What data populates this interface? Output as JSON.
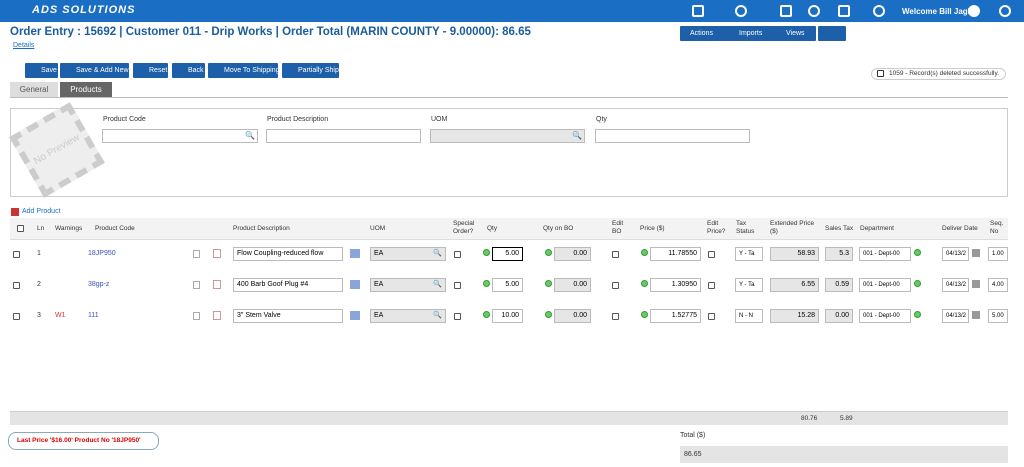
{
  "topbar": {
    "logo": "ADS SOLUTIONS",
    "welcome": "Welcome Bill Jagla"
  },
  "header": {
    "title": "Order Entry : 15692 | Customer 011 - Drip Works | Order Total (MARIN COUNTY - 9.00000): 86.65",
    "details": "Details"
  },
  "menus": [
    "Actions",
    "Imports",
    "Views"
  ],
  "toolbar": [
    "Save",
    "Save & Add New",
    "Reset",
    "Back",
    "Move To Shipping",
    "Partially Ship"
  ],
  "notification": "1059 - Record(s) deleted successfully.",
  "tabs": [
    "General",
    "Products"
  ],
  "product_panel": {
    "preview": "No Preview",
    "fields": [
      "Product Code",
      "Product Description",
      "UOM",
      "Qty"
    ]
  },
  "add_product": "Add Product",
  "table": {
    "columns": [
      "Ln",
      "Warnings",
      "Product Code",
      "Product Description",
      "UOM",
      "Special Order?",
      "Qty",
      "Qty on BO",
      "Edit BO",
      "Price ($)",
      "Edit Price?",
      "Tax Status",
      "Extended Price ($)",
      "Sales Tax",
      "Department",
      "Deliver Date",
      "Seq. No"
    ],
    "rows": [
      {
        "ln": "1",
        "code": "18JP950",
        "description": "Flow Coupling-reduced flow",
        "uom": "EA",
        "qty": "5.00",
        "qty_bo": "0.00",
        "price": "11.78550",
        "tax": "Y - Ta",
        "extended": "58.93",
        "sales_tax": "5.3",
        "department": "001 - Dept-00",
        "date": "04/13/2",
        "seq": "1.00"
      },
      {
        "ln": "2",
        "code": "38gp-z",
        "description": "400 Barb Goof Plug #4",
        "uom": "EA",
        "qty": "5.00",
        "qty_bo": "0.00",
        "price": "1.30950",
        "tax": "Y - Ta",
        "extended": "6.55",
        "sales_tax": "0.59",
        "department": "001 - Dept-00",
        "date": "04/13/2",
        "seq": "4.00"
      },
      {
        "ln": "3",
        "warning": "W1",
        "code": "111",
        "description": "3\" Stem Valve",
        "uom": "EA",
        "qty": "10.00",
        "qty_bo": "0.00",
        "price": "1.52775",
        "tax": "N - N",
        "extended": "15.28",
        "sales_tax": "0.00",
        "department": "001 - Dept-00",
        "date": "04/13/2",
        "seq": "5.00"
      }
    ],
    "totals": [
      "80.76",
      "5.89"
    ]
  },
  "last_price": "Last Price '$16.00' Product No '18JP950'",
  "order_total": {
    "label": "Total ($)",
    "value": "86.65"
  }
}
